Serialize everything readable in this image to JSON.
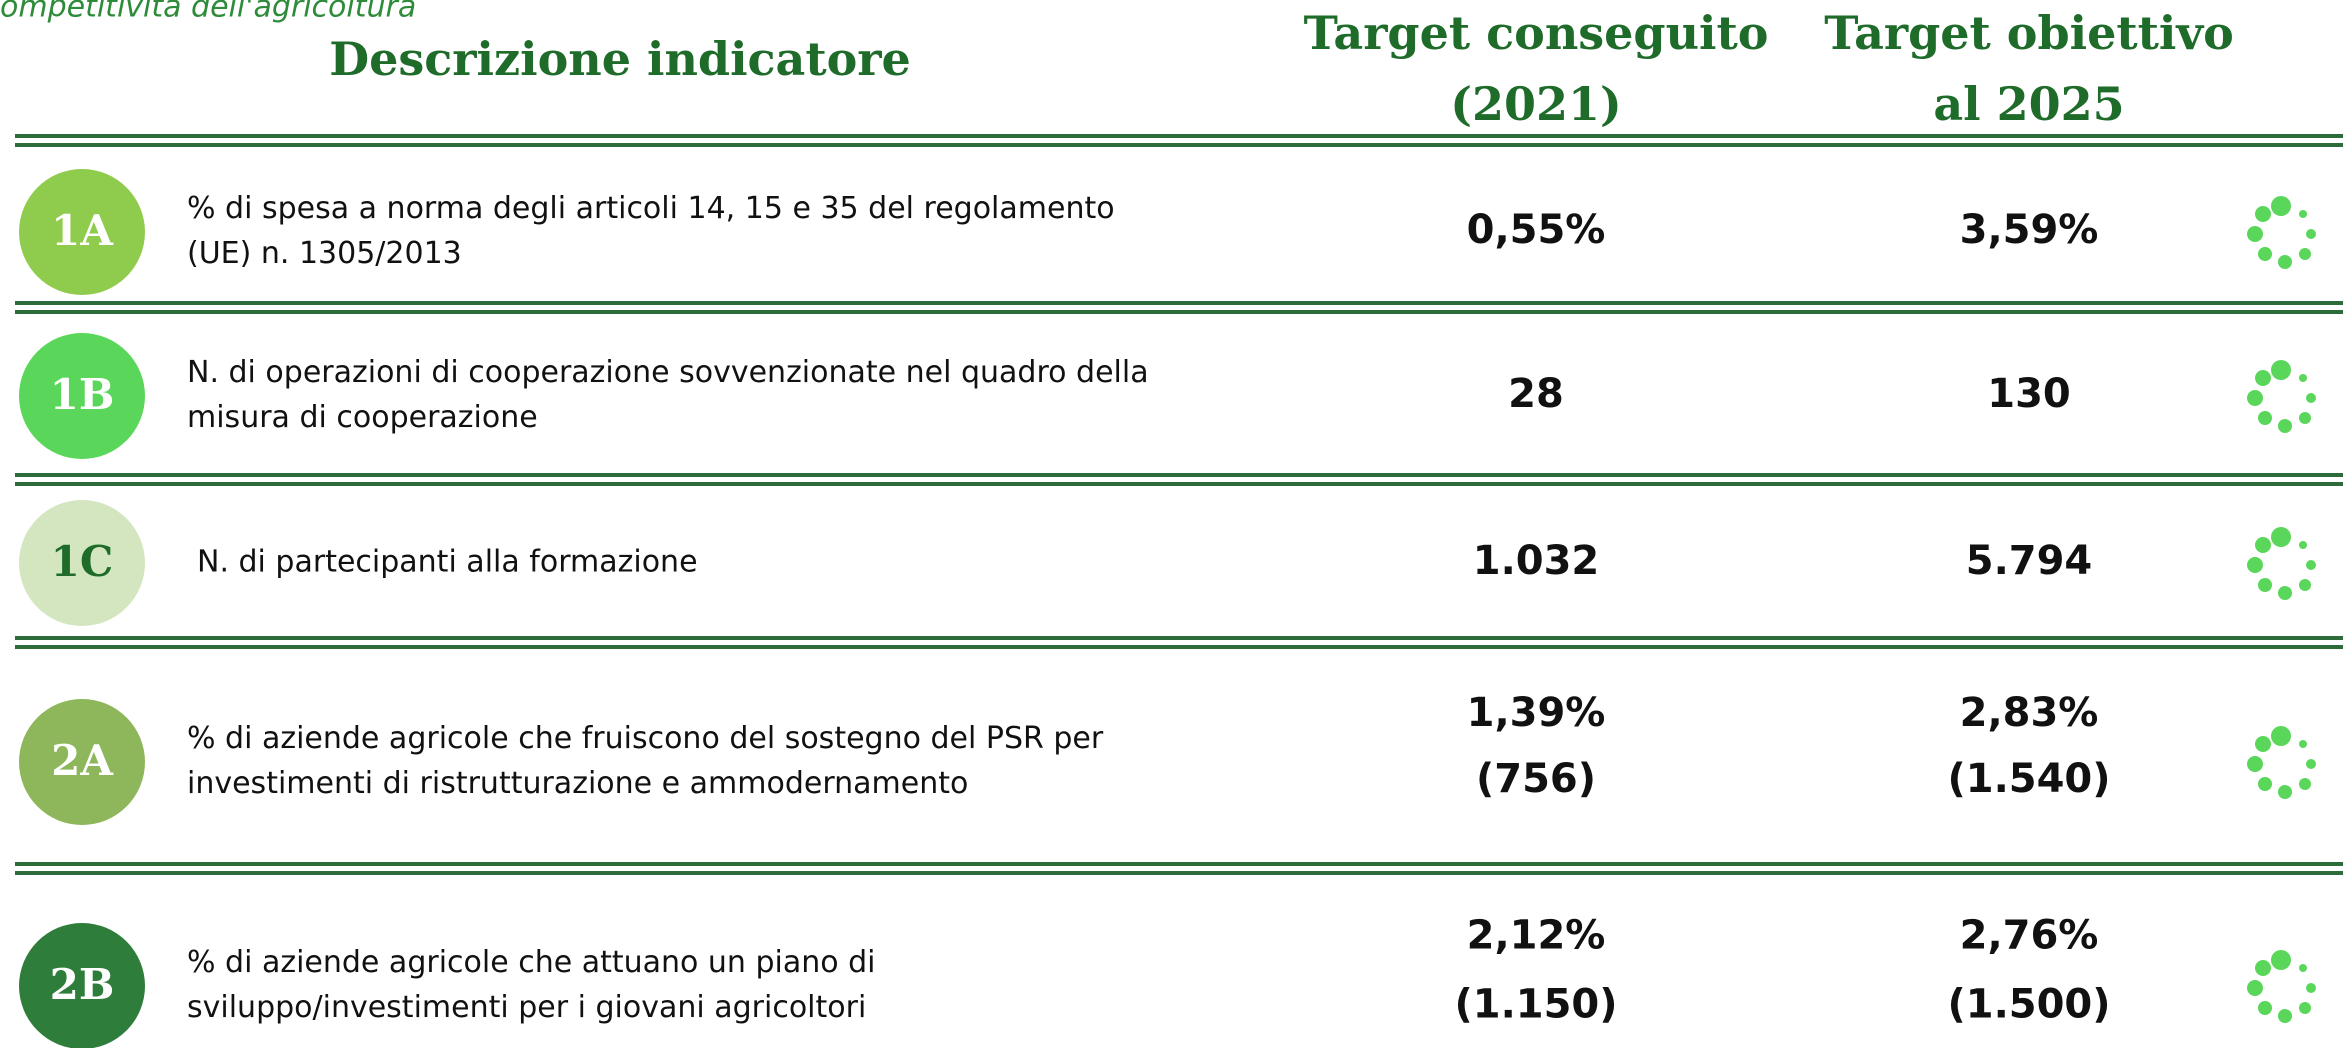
{
  "header": {
    "section": "ompetitività dell'agricoltura",
    "columns": [
      [
        "Descrizione indicatore"
      ],
      [
        "Target conseguito",
        "(2021)"
      ],
      [
        "Target obiettivo",
        "al 2025"
      ]
    ]
  },
  "table": {
    "rows": [
      {
        "code": "1A",
        "description": [
          "% di spesa a norma degli articoli 14, 15 e 35 del regolamento",
          "(UE) n. 1305/2013"
        ],
        "achieved": [
          "0,55%"
        ],
        "target": [
          "3,59%"
        ]
      },
      {
        "code": "1B",
        "description": [
          "N. di operazioni di cooperazione sovvenzionate nel quadro della",
          "misura di cooperazione"
        ],
        "achieved": [
          "28"
        ],
        "target": [
          "130"
        ]
      },
      {
        "code": "1C",
        "description": [
          "N. di partecipanti alla formazione"
        ],
        "achieved": [
          "1.032"
        ],
        "target": [
          "5.794"
        ]
      },
      {
        "code": "2A",
        "description": [
          "% di aziende agricole che fruiscono del sostegno del PSR per",
          "investimenti di ristrutturazione e ammodernamento"
        ],
        "achieved": [
          "1,39%",
          "(756)"
        ],
        "target": [
          "2,83%",
          "(1.540)"
        ]
      },
      {
        "code": "2B",
        "description": [
          "% di aziende agricole che attuano un piano di",
          "sviluppo/investimenti per i giovani agricoltori"
        ],
        "achieved": [
          "2,12%",
          "(1.150)"
        ],
        "target": [
          "2,76%",
          "(1.500)"
        ]
      }
    ]
  }
}
